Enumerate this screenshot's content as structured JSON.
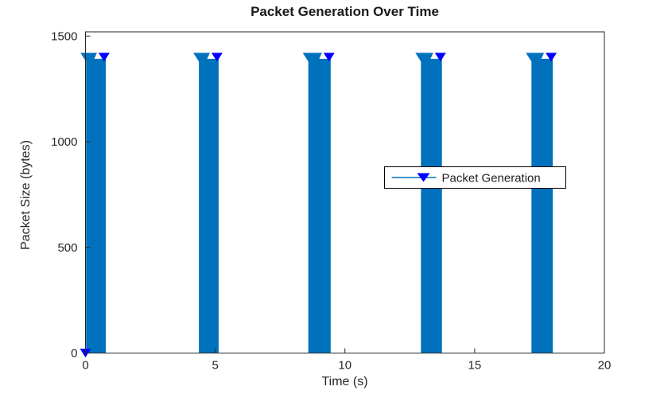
{
  "window": {
    "background_color": "#ffffff"
  },
  "chart_data": {
    "type": "stem",
    "title": "Packet Generation Over Time",
    "xlabel": "Time (s)",
    "ylabel": "Packet Size (bytes)",
    "xlim": [
      0,
      20
    ],
    "ylim": [
      0,
      1520
    ],
    "xticks": [
      0,
      5,
      10,
      15,
      20
    ],
    "yticks": [
      0,
      500,
      1000,
      1500
    ],
    "grid": false,
    "box": true,
    "tick_direction": "in",
    "axis_color": "#262626",
    "text_color": "#262626",
    "title_color": "#1a1a1a",
    "legend": {
      "label": "Packet Generation",
      "location": "center-right-inside",
      "border_color": "#000000",
      "background": "#ffffff"
    },
    "series": [
      {
        "name": "Packet Generation",
        "marker": "triangle-down",
        "marker_filled": true,
        "line_color": "#0072BD",
        "marker_color": "#0000FF",
        "packet_size_bytes": 1400,
        "bursts": [
          [
            0.02,
            0.78
          ],
          [
            4.37,
            5.13
          ],
          [
            8.59,
            9.45
          ],
          [
            12.93,
            13.74
          ],
          [
            17.19,
            18.01
          ]
        ],
        "zero_marker": [
          0,
          0
        ]
      }
    ]
  }
}
